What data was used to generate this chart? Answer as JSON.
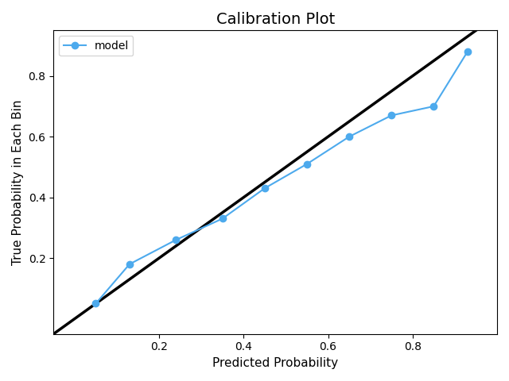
{
  "title": "Calibration Plot",
  "xlabel": "Predicted Probability",
  "ylabel": "True Probability in Each Bin",
  "model_x": [
    0.05,
    0.13,
    0.24,
    0.35,
    0.45,
    0.55,
    0.65,
    0.75,
    0.85,
    0.93
  ],
  "model_y": [
    0.05,
    0.18,
    0.26,
    0.33,
    0.43,
    0.51,
    0.6,
    0.67,
    0.7,
    0.88
  ],
  "line_color": "#4daaed",
  "line_marker": "o",
  "line_label": "model",
  "diag_color": "black",
  "diag_lw": 2.5,
  "model_lw": 1.5,
  "marker_size": 6,
  "xlim": [
    -0.05,
    1.0
  ],
  "ylim": [
    -0.05,
    0.95
  ],
  "xticks": [
    0.2,
    0.4,
    0.6,
    0.8
  ],
  "yticks": [
    0.2,
    0.4,
    0.6,
    0.8
  ],
  "title_fontsize": 14,
  "label_fontsize": 11
}
